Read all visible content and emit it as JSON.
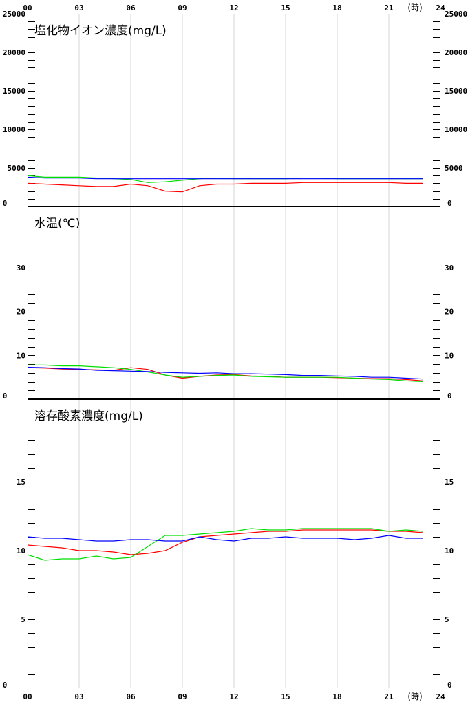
{
  "x_axis": {
    "ticks": [
      "00",
      "03",
      "06",
      "09",
      "12",
      "15",
      "18",
      "21",
      "24"
    ],
    "unit": "(時)"
  },
  "chart_data": [
    {
      "type": "line",
      "title": "塩化物イオン濃度(mg/L)",
      "ylim": [
        0,
        25000
      ],
      "yticks": [
        "0",
        "5000",
        "10000",
        "15000",
        "20000",
        "25000"
      ],
      "ytick_values": [
        0,
        5000,
        10000,
        15000,
        20000,
        25000
      ],
      "minor_step": 1000,
      "colors": [
        "#ff0000",
        "#00dd00",
        "#0000ff"
      ],
      "series": [
        {
          "x": [
            0,
            1,
            2,
            3,
            4,
            5,
            6,
            7,
            8,
            9,
            10,
            11,
            12,
            13,
            14,
            15,
            16,
            17,
            18,
            19,
            20,
            21,
            22,
            23
          ],
          "values": [
            3000,
            2900,
            2800,
            2700,
            2600,
            2600,
            2900,
            2700,
            2000,
            1900,
            2700,
            2900,
            2900,
            3000,
            3000,
            3000,
            3100,
            3100,
            3100,
            3100,
            3100,
            3100,
            3000,
            3000
          ]
        },
        {
          "x": [
            0,
            1,
            2,
            3,
            4,
            5,
            6,
            7,
            8,
            9,
            10,
            11,
            12,
            13,
            14,
            15,
            16,
            17,
            18,
            19,
            20,
            21,
            22,
            23
          ],
          "values": [
            4000,
            3800,
            3800,
            3800,
            3700,
            3600,
            3500,
            3100,
            3200,
            3400,
            3600,
            3700,
            3600,
            3600,
            3600,
            3600,
            3700,
            3700,
            3600,
            3600,
            3600,
            3600,
            3600,
            3600
          ]
        },
        {
          "x": [
            0,
            1,
            2,
            3,
            4,
            5,
            6,
            7,
            8,
            9,
            10,
            11,
            12,
            13,
            14,
            15,
            16,
            17,
            18,
            19,
            20,
            21,
            22,
            23
          ],
          "values": [
            3800,
            3700,
            3700,
            3700,
            3600,
            3600,
            3600,
            3600,
            3600,
            3600,
            3600,
            3600,
            3600,
            3600,
            3600,
            3600,
            3600,
            3600,
            3600,
            3600,
            3600,
            3600,
            3600,
            3600
          ]
        }
      ]
    },
    {
      "type": "line",
      "title": "水温(℃)",
      "ylim": [
        0,
        44
      ],
      "yticks": [
        "0",
        "10",
        "20",
        "30"
      ],
      "ytick_values": [
        0,
        10,
        20,
        30
      ],
      "minor_step": 2,
      "minor_max": 32,
      "colors": [
        "#ff0000",
        "#00dd00",
        "#0000ff"
      ],
      "series": [
        {
          "x": [
            0,
            1,
            2,
            3,
            4,
            5,
            6,
            7,
            8,
            9,
            10,
            11,
            12,
            13,
            14,
            15,
            16,
            17,
            18,
            19,
            20,
            21,
            22,
            23
          ],
          "values": [
            7.2,
            7.1,
            6.9,
            6.8,
            6.7,
            6.6,
            7.2,
            6.8,
            5.5,
            4.8,
            5.2,
            5.5,
            5.6,
            5.3,
            5.2,
            5.0,
            5.0,
            5.0,
            4.9,
            4.8,
            4.7,
            4.7,
            4.5,
            4.2
          ]
        },
        {
          "x": [
            0,
            1,
            2,
            3,
            4,
            5,
            6,
            7,
            8,
            9,
            10,
            11,
            12,
            13,
            14,
            15,
            16,
            17,
            18,
            19,
            20,
            21,
            22,
            23
          ],
          "values": [
            7.8,
            7.8,
            7.6,
            7.6,
            7.4,
            7.2,
            6.8,
            6.2,
            5.5,
            5.0,
            5.2,
            5.4,
            5.5,
            5.2,
            5.1,
            5.0,
            5.0,
            5.0,
            5.0,
            4.8,
            4.6,
            4.5,
            4.2,
            4.0
          ]
        },
        {
          "x": [
            0,
            1,
            2,
            3,
            4,
            5,
            6,
            7,
            8,
            9,
            10,
            11,
            12,
            13,
            14,
            15,
            16,
            17,
            18,
            19,
            20,
            21,
            22,
            23
          ],
          "values": [
            7.3,
            7.2,
            7.0,
            6.9,
            6.6,
            6.5,
            6.4,
            6.3,
            6.1,
            6.0,
            5.9,
            6.0,
            5.8,
            5.8,
            5.7,
            5.6,
            5.4,
            5.4,
            5.3,
            5.2,
            5.0,
            5.0,
            4.8,
            4.6
          ]
        }
      ]
    },
    {
      "type": "line",
      "title": "溶存酸素濃度(mg/L)",
      "ylim": [
        0,
        21
      ],
      "yticks": [
        "0",
        "5",
        "10",
        "15"
      ],
      "ytick_values": [
        0,
        5,
        10,
        15
      ],
      "minor_step": 1,
      "minor_max": 18,
      "colors": [
        "#ff0000",
        "#00dd00",
        "#0000ff"
      ],
      "series": [
        {
          "x": [
            0,
            1,
            2,
            3,
            4,
            5,
            6,
            7,
            8,
            9,
            10,
            11,
            12,
            13,
            14,
            15,
            16,
            17,
            18,
            19,
            20,
            21,
            22,
            23
          ],
          "values": [
            10.4,
            10.3,
            10.2,
            10.0,
            10.0,
            9.9,
            9.7,
            9.8,
            10.0,
            10.6,
            11.0,
            11.1,
            11.2,
            11.3,
            11.4,
            11.4,
            11.5,
            11.5,
            11.5,
            11.5,
            11.5,
            11.4,
            11.4,
            11.3
          ]
        },
        {
          "x": [
            0,
            1,
            2,
            3,
            4,
            5,
            6,
            7,
            8,
            9,
            10,
            11,
            12,
            13,
            14,
            15,
            16,
            17,
            18,
            19,
            20,
            21,
            22,
            23
          ],
          "values": [
            9.7,
            9.3,
            9.4,
            9.4,
            9.6,
            9.4,
            9.5,
            10.3,
            11.1,
            11.1,
            11.2,
            11.3,
            11.4,
            11.6,
            11.5,
            11.5,
            11.6,
            11.6,
            11.6,
            11.6,
            11.6,
            11.4,
            11.5,
            11.4
          ]
        },
        {
          "x": [
            0,
            1,
            2,
            3,
            4,
            5,
            6,
            7,
            8,
            9,
            10,
            11,
            12,
            13,
            14,
            15,
            16,
            17,
            18,
            19,
            20,
            21,
            22,
            23
          ],
          "values": [
            11.0,
            10.9,
            10.9,
            10.8,
            10.7,
            10.7,
            10.8,
            10.8,
            10.7,
            10.7,
            11.0,
            10.8,
            10.7,
            10.9,
            10.9,
            11.0,
            10.9,
            10.9,
            10.9,
            10.8,
            10.9,
            11.1,
            10.9,
            10.9
          ]
        }
      ]
    }
  ]
}
